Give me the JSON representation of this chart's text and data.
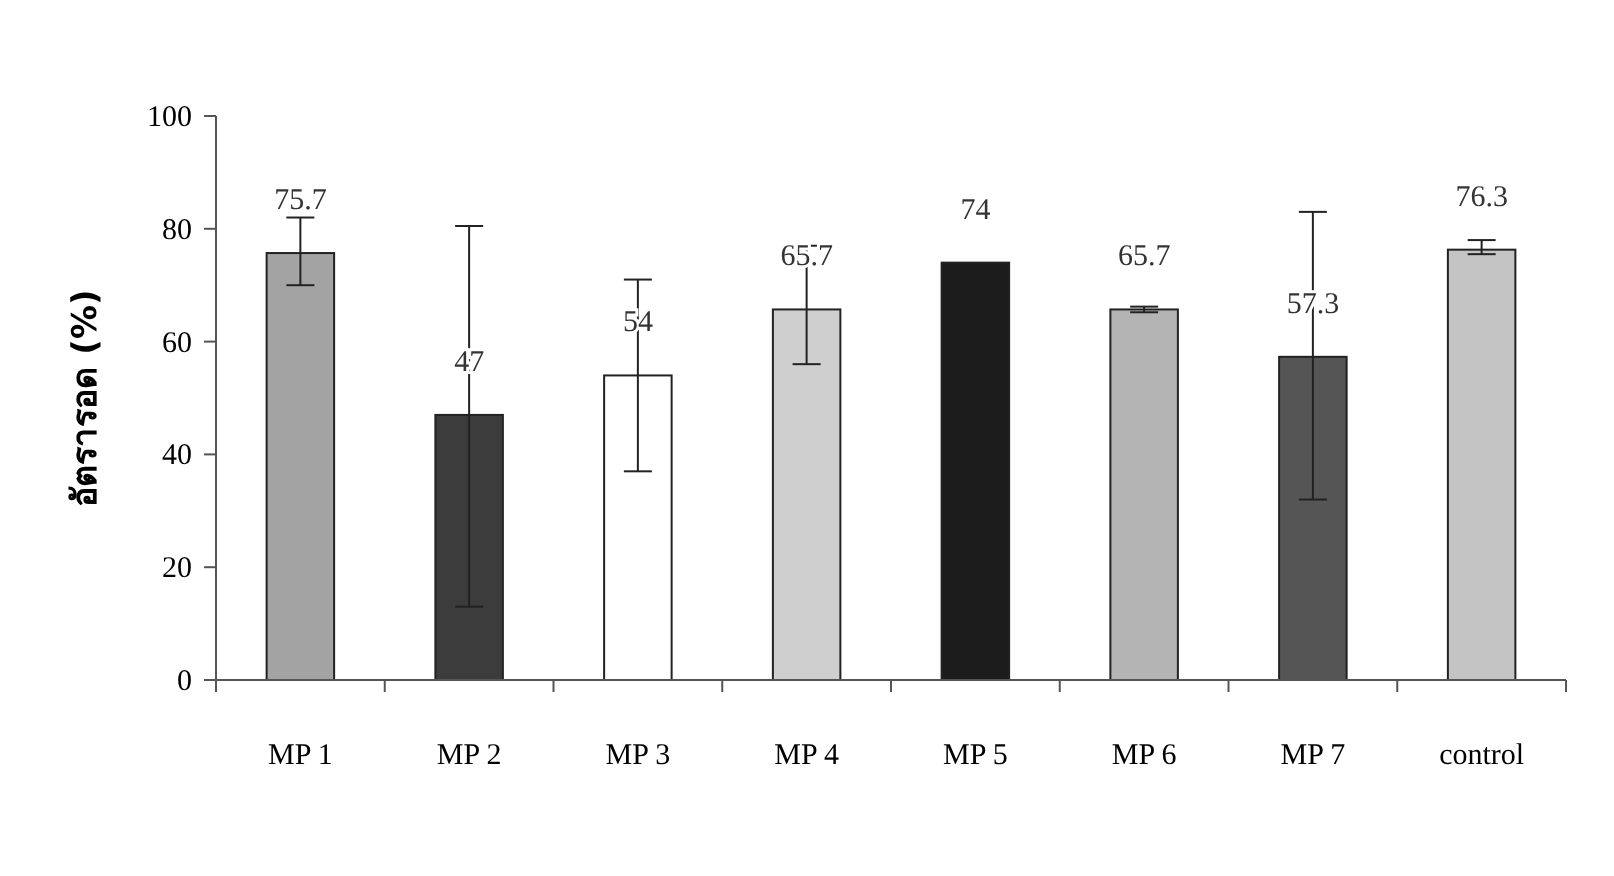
{
  "chart_data": {
    "type": "bar",
    "ylabel": "อัตรารอด (%)",
    "categories": [
      "MP 1",
      "MP 2",
      "MP 3",
      "MP 4",
      "MP 5",
      "MP 6",
      "MP 7",
      "control"
    ],
    "values": [
      75.7,
      47,
      54,
      65.7,
      74,
      65.7,
      57.3,
      76.3
    ],
    "colors": [
      "#a3a3a3",
      "#3c3c3c",
      "#ffffff",
      "#cfcfcf",
      "#1c1c1c",
      "#b4b4b4",
      "#555555",
      "#c4c4c4"
    ],
    "errors": [
      [
        70,
        82
      ],
      [
        13,
        80.5
      ],
      [
        37,
        71
      ],
      [
        56,
        77
      ],
      null,
      [
        65.2,
        66.2
      ],
      [
        32,
        83
      ],
      [
        75.5,
        78
      ]
    ],
    "ylim": [
      0,
      100
    ],
    "yticks": [
      0,
      20,
      40,
      60,
      80,
      100
    ],
    "data_labels": true,
    "grid": false
  }
}
